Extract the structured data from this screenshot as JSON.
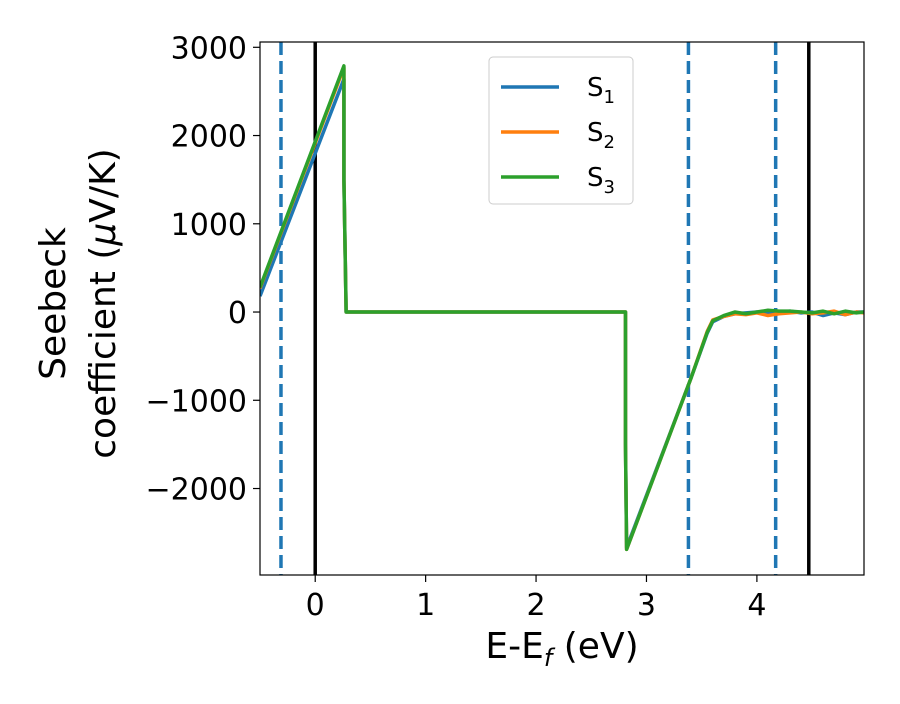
{
  "chart_data": {
    "type": "line",
    "title": "",
    "xlabel_main": "E-E",
    "xlabel_sub": "f",
    "xlabel_unit": " (eV)",
    "ylabel_line1": "Seebeck",
    "ylabel_line2_text": "coefficient  (",
    "ylabel_line2_mu": "μ",
    "ylabel_line2_unit": "V/K)",
    "xlim": [
      -0.5,
      4.97
    ],
    "ylim": [
      -2980,
      3060
    ],
    "x_ticks": [
      0,
      1,
      2,
      3,
      4
    ],
    "x_tick_labels": [
      "0",
      "1",
      "2",
      "3",
      "4"
    ],
    "y_ticks": [
      -2000,
      -1000,
      0,
      1000,
      2000,
      3000
    ],
    "y_tick_labels": [
      "−2000",
      "−1000",
      "0",
      "1000",
      "2000",
      "3000"
    ],
    "grid": false,
    "legend_position": "top-center",
    "series": [
      {
        "name_main": "S",
        "name_sub": "1",
        "color": "#1f77b4",
        "x": [
          -0.5,
          0.26,
          0.26,
          0.28,
          2.81,
          2.81,
          2.82,
          3.4,
          3.55,
          3.6,
          3.7,
          3.8,
          3.9,
          4.0,
          4.1,
          4.2,
          4.3,
          4.4,
          4.5,
          4.6,
          4.7,
          4.8,
          4.9,
          4.97
        ],
        "y": [
          180,
          2640,
          1500,
          0,
          0,
          -1500,
          -2670,
          -760,
          -240,
          -110,
          -50,
          -20,
          -10,
          0,
          -5,
          0,
          10,
          -10,
          0,
          -40,
          -10,
          -30,
          0,
          0
        ]
      },
      {
        "name_main": "S",
        "name_sub": "2",
        "color": "#ff7f0e",
        "x": [
          -0.5,
          0.26,
          0.26,
          0.28,
          2.81,
          2.81,
          2.82,
          3.4,
          3.55,
          3.6,
          3.7,
          3.8,
          3.9,
          4.0,
          4.1,
          4.2,
          4.3,
          4.4,
          4.5,
          4.6,
          4.7,
          4.8,
          4.9,
          4.97
        ],
        "y": [
          270,
          2770,
          1500,
          0,
          0,
          -1500,
          -2690,
          -760,
          -220,
          -90,
          -50,
          -20,
          -30,
          -10,
          -40,
          -20,
          -10,
          0,
          -20,
          -10,
          10,
          -30,
          0,
          -10
        ]
      },
      {
        "name_main": "S",
        "name_sub": "3",
        "color": "#2ca02c",
        "x": [
          -0.5,
          0.26,
          0.26,
          0.28,
          2.81,
          2.81,
          2.82,
          3.4,
          3.55,
          3.6,
          3.7,
          3.8,
          3.9,
          4.0,
          4.1,
          4.2,
          4.3,
          4.4,
          4.5,
          4.6,
          4.7,
          4.8,
          4.9,
          4.97
        ],
        "y": [
          280,
          2790,
          1500,
          0,
          0,
          -1500,
          -2690,
          -760,
          -230,
          -100,
          -40,
          0,
          -20,
          0,
          20,
          10,
          10,
          0,
          -10,
          10,
          -20,
          10,
          -10,
          0
        ]
      }
    ],
    "vertical_lines": [
      {
        "x": -0.31,
        "style": "dashed",
        "color": "#1f77b4"
      },
      {
        "x": 0.0,
        "style": "solid",
        "color": "#000000"
      },
      {
        "x": 3.38,
        "style": "dashed",
        "color": "#1f77b4"
      },
      {
        "x": 4.17,
        "style": "dashed",
        "color": "#1f77b4"
      },
      {
        "x": 4.47,
        "style": "solid",
        "color": "#000000"
      }
    ]
  }
}
